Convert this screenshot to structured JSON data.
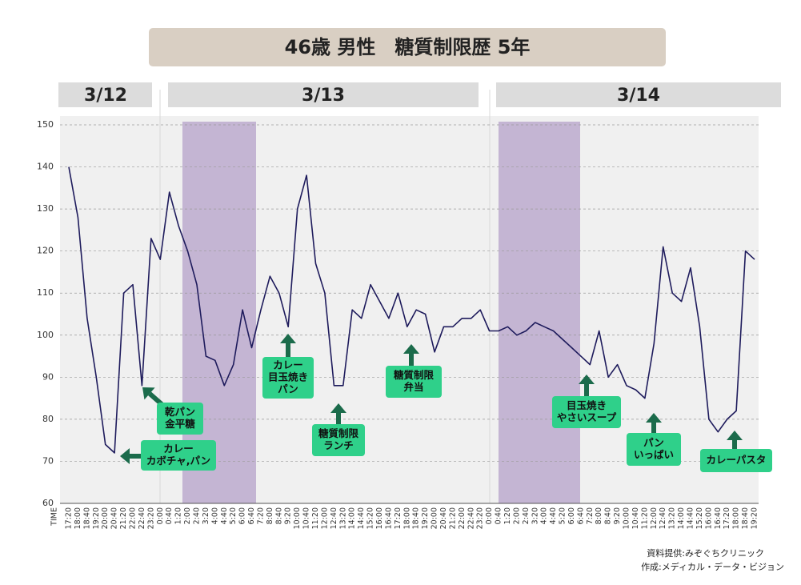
{
  "title": "46歳 男性　糖質制限歴 5年",
  "dates": [
    "3/12",
    "3/13",
    "3/14"
  ],
  "chart_data": {
    "type": "line",
    "x_label": "TIME",
    "categories": [
      "17:20",
      "18:00",
      "18:40",
      "19:20",
      "20:00",
      "20:40",
      "21:20",
      "22:00",
      "22:40",
      "23:20",
      "0:00",
      "0:40",
      "1:20",
      "2:00",
      "2:40",
      "3:20",
      "4:00",
      "4:40",
      "5:20",
      "6:00",
      "6:40",
      "7:20",
      "8:00",
      "8:40",
      "9:20",
      "10:00",
      "10:40",
      "11:20",
      "12:00",
      "12:40",
      "13:20",
      "14:00",
      "14:40",
      "15:20",
      "16:00",
      "16:40",
      "17:20",
      "18:00",
      "18:40",
      "19:20",
      "20:00",
      "20:40",
      "21:20",
      "22:00",
      "22:40",
      "23:20",
      "0:00",
      "0:40",
      "1:20",
      "2:00",
      "2:40",
      "3:20",
      "4:00",
      "4:40",
      "5:20",
      "6:00",
      "6:40",
      "7:20",
      "8:00",
      "8:40",
      "9:20",
      "10:00",
      "10:40",
      "11:20",
      "12:00",
      "12:40",
      "13:20",
      "14:00",
      "14:40",
      "15:20",
      "16:00",
      "16:40",
      "17:20",
      "18:00",
      "18:40",
      "19:20"
    ],
    "values": [
      140,
      128,
      104,
      90,
      74,
      72,
      110,
      112,
      88,
      123,
      118,
      134,
      126,
      120,
      112,
      95,
      94,
      88,
      93,
      106,
      97,
      106,
      114,
      110,
      102,
      130,
      138,
      117,
      110,
      88,
      88,
      106,
      104,
      112,
      108,
      104,
      110,
      102,
      106,
      105,
      96,
      102,
      102,
      104,
      104,
      106,
      101,
      101,
      102,
      100,
      101,
      103,
      102,
      101,
      99,
      97,
      95,
      93,
      101,
      90,
      93,
      88,
      87,
      85,
      98,
      121,
      110,
      108,
      116,
      102,
      80,
      77,
      80,
      82,
      120,
      118
    ],
    "color": "#1e1b5c",
    "ylim": [
      60,
      150
    ],
    "yticks": [
      60,
      70,
      80,
      90,
      100,
      110,
      120,
      130,
      140,
      150
    ],
    "grid": true,
    "annotations": [
      {
        "lines": [
          "乾パン",
          "金平糖"
        ]
      },
      {
        "lines": [
          "カレー",
          "カボチャ,パン"
        ]
      },
      {
        "lines": [
          "カレー",
          "目玉焼き",
          "パン"
        ]
      },
      {
        "lines": [
          "糖質制限",
          "ランチ"
        ]
      },
      {
        "lines": [
          "糖質制限",
          "弁当"
        ]
      },
      {
        "lines": [
          "目玉焼き",
          "やさいスープ"
        ]
      },
      {
        "lines": [
          "パン",
          "いっぱい"
        ]
      },
      {
        "lines": [
          "カレーパスタ"
        ]
      }
    ]
  },
  "credits": [
    "資料提供:みぞぐちクリニック",
    "作成:メディカル・データ・ビジョン"
  ]
}
